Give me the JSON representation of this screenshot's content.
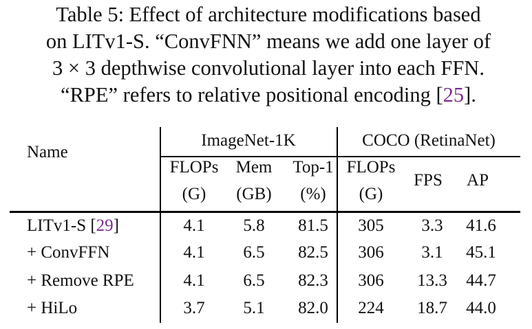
{
  "caption": {
    "line1": "Table 5: Effect of architecture modifications based",
    "line2": "on LITv1-S. “ConvFNN” means we add one layer of",
    "line3": "3 × 3 depthwise convolutional layer into each FFN.",
    "line4_before": "“RPE” refers to relative positional encoding [",
    "line4_cite": "25",
    "line4_after": "]."
  },
  "table": {
    "name_header": "Name",
    "groups": [
      {
        "label": "ImageNet-1K"
      },
      {
        "label": "COCO (RetinaNet)"
      }
    ],
    "columns": [
      {
        "line1": "FLOPs",
        "line2": "(G)"
      },
      {
        "line1": "Mem",
        "line2": "(GB)"
      },
      {
        "line1": "Top-1",
        "line2": "(%)"
      },
      {
        "line1": "FLOPs",
        "line2": "(G)"
      },
      {
        "line1": "FPS",
        "line2": ""
      },
      {
        "line1": "AP",
        "line2": ""
      }
    ],
    "rows": [
      {
        "name": "LITv1-S [",
        "cite": "29",
        "name_end": "]",
        "values": [
          "4.1",
          "5.8",
          "81.5",
          "305",
          "3.3",
          "41.6"
        ]
      },
      {
        "name": "+ ConvFFN",
        "cite": "",
        "name_end": "",
        "values": [
          "4.1",
          "6.5",
          "82.5",
          "306",
          "3.1",
          "45.1"
        ]
      },
      {
        "name": "+ Remove RPE",
        "cite": "",
        "name_end": "",
        "values": [
          "4.1",
          "6.5",
          "82.3",
          "306",
          "13.3",
          "44.7"
        ]
      },
      {
        "name": "+ HiLo",
        "cite": "",
        "name_end": "",
        "values": [
          "3.7",
          "5.1",
          "82.0",
          "224",
          "18.7",
          "44.0"
        ]
      }
    ]
  },
  "colors": {
    "citation": "#7b2c8c",
    "text": "#111111"
  }
}
